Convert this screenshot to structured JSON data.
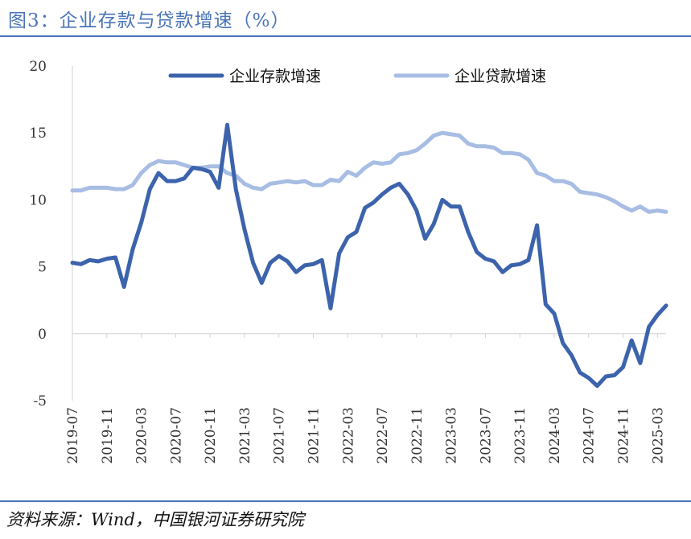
{
  "title": "图3：企业存款与贷款增速（%）",
  "source": "资料来源：Wind，中国银河证券研究院",
  "colors": {
    "accent": "#4a74b8",
    "series_dark": "#3c63ac",
    "series_light": "#a7bde3"
  },
  "chart_data": {
    "type": "line",
    "title": "图3：企业存款与贷款增速（%）",
    "xlabel": "",
    "ylabel": "",
    "ylim": [
      -5,
      20
    ],
    "yticks": [
      -5,
      0,
      5,
      10,
      15,
      20
    ],
    "grid": false,
    "legend": "top",
    "x_tick_labels": [
      "2019-07",
      "2019-11",
      "2020-03",
      "2020-07",
      "2020-11",
      "2021-03",
      "2021-07",
      "2021-11",
      "2022-03",
      "2022-07",
      "2022-11",
      "2023-03",
      "2023-07",
      "2023-11",
      "2024-03",
      "2024-07",
      "2024-11",
      "2025-03"
    ],
    "x": [
      "2019-07",
      "2019-08",
      "2019-09",
      "2019-10",
      "2019-11",
      "2019-12",
      "2020-01",
      "2020-02",
      "2020-03",
      "2020-04",
      "2020-05",
      "2020-06",
      "2020-07",
      "2020-08",
      "2020-09",
      "2020-10",
      "2020-11",
      "2020-12",
      "2021-01",
      "2021-02",
      "2021-03",
      "2021-04",
      "2021-05",
      "2021-06",
      "2021-07",
      "2021-08",
      "2021-09",
      "2021-10",
      "2021-11",
      "2021-12",
      "2022-01",
      "2022-02",
      "2022-03",
      "2022-04",
      "2022-05",
      "2022-06",
      "2022-07",
      "2022-08",
      "2022-09",
      "2022-10",
      "2022-11",
      "2022-12",
      "2023-01",
      "2023-02",
      "2023-03",
      "2023-04",
      "2023-05",
      "2023-06",
      "2023-07",
      "2023-08",
      "2023-09",
      "2023-10",
      "2023-11",
      "2023-12",
      "2024-01",
      "2024-02",
      "2024-03",
      "2024-04",
      "2024-05",
      "2024-06",
      "2024-07",
      "2024-08",
      "2024-09",
      "2024-10",
      "2024-11",
      "2024-12",
      "2025-01",
      "2025-02",
      "2025-03",
      "2025-04"
    ],
    "series": [
      {
        "name": "企业存款增速",
        "color": "#3c63ac",
        "values": [
          5.3,
          5.2,
          5.5,
          5.4,
          5.6,
          5.7,
          3.5,
          6.3,
          8.3,
          10.8,
          12.0,
          11.4,
          11.4,
          11.6,
          12.4,
          12.3,
          12.1,
          10.9,
          15.6,
          10.8,
          7.8,
          5.3,
          3.8,
          5.3,
          5.8,
          5.4,
          4.6,
          5.1,
          5.2,
          5.5,
          1.9,
          6.0,
          7.2,
          7.6,
          9.4,
          9.8,
          10.4,
          10.9,
          11.2,
          10.4,
          9.2,
          7.1,
          8.2,
          10.0,
          9.5,
          9.5,
          7.6,
          6.1,
          5.6,
          5.4,
          4.6,
          5.1,
          5.2,
          5.5,
          8.1,
          2.2,
          1.5,
          -0.7,
          -1.6,
          -2.9,
          -3.3,
          -3.9,
          -3.2,
          -3.1,
          -2.5,
          -0.5,
          -2.2,
          0.5,
          1.4,
          2.1
        ]
      },
      {
        "name": "企业贷款增速",
        "color": "#a7bde3",
        "values": [
          10.7,
          10.7,
          10.9,
          10.9,
          10.9,
          10.8,
          10.8,
          11.1,
          12.0,
          12.6,
          12.9,
          12.8,
          12.8,
          12.6,
          12.4,
          12.4,
          12.5,
          12.5,
          12.0,
          11.8,
          11.2,
          10.9,
          10.8,
          11.2,
          11.3,
          11.4,
          11.3,
          11.4,
          11.1,
          11.1,
          11.5,
          11.4,
          12.1,
          11.8,
          12.4,
          12.8,
          12.7,
          12.8,
          13.4,
          13.5,
          13.7,
          14.2,
          14.8,
          15.0,
          14.9,
          14.8,
          14.2,
          14.0,
          14.0,
          13.9,
          13.5,
          13.5,
          13.4,
          13.0,
          12.0,
          11.8,
          11.4,
          11.4,
          11.2,
          10.6,
          10.5,
          10.4,
          10.2,
          9.9,
          9.5,
          9.2,
          9.5,
          9.1,
          9.2,
          9.1
        ]
      }
    ]
  }
}
